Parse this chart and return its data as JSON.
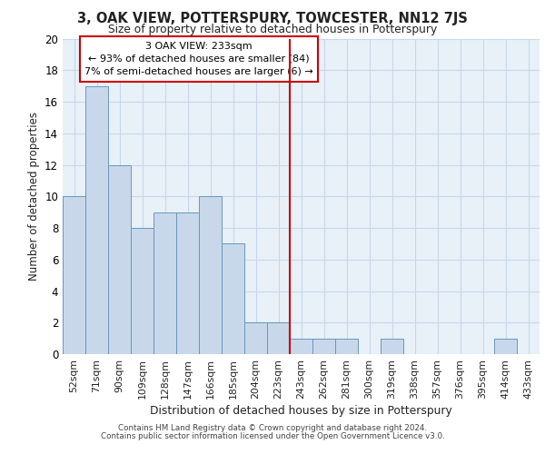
{
  "title": "3, OAK VIEW, POTTERSPURY, TOWCESTER, NN12 7JS",
  "subtitle": "Size of property relative to detached houses in Potterspury",
  "xlabel": "Distribution of detached houses by size in Potterspury",
  "ylabel": "Number of detached properties",
  "bar_labels": [
    "52sqm",
    "71sqm",
    "90sqm",
    "109sqm",
    "128sqm",
    "147sqm",
    "166sqm",
    "185sqm",
    "204sqm",
    "223sqm",
    "243sqm",
    "262sqm",
    "281sqm",
    "300sqm",
    "319sqm",
    "338sqm",
    "357sqm",
    "376sqm",
    "395sqm",
    "414sqm",
    "433sqm"
  ],
  "bar_values": [
    10,
    17,
    12,
    8,
    9,
    9,
    10,
    7,
    2,
    2,
    1,
    1,
    1,
    0,
    1,
    0,
    0,
    0,
    0,
    1,
    0
  ],
  "bar_color": "#c8d8ea",
  "bar_edge_color": "#6699bb",
  "property_line_x": 9.5,
  "annotation_line1": "3 OAK VIEW: 233sqm",
  "annotation_line2": "← 93% of detached houses are smaller (84)",
  "annotation_line3": "7% of semi-detached houses are larger (6) →",
  "annotation_box_color": "#ffffff",
  "annotation_box_edge": "#cc0000",
  "vline_color": "#cc0000",
  "ylim": [
    0,
    20
  ],
  "yticks": [
    0,
    2,
    4,
    6,
    8,
    10,
    12,
    14,
    16,
    18,
    20
  ],
  "grid_color": "#c8d8ea",
  "bg_color": "#e8f0f8",
  "footer_line1": "Contains HM Land Registry data © Crown copyright and database right 2024.",
  "footer_line2": "Contains public sector information licensed under the Open Government Licence v3.0."
}
